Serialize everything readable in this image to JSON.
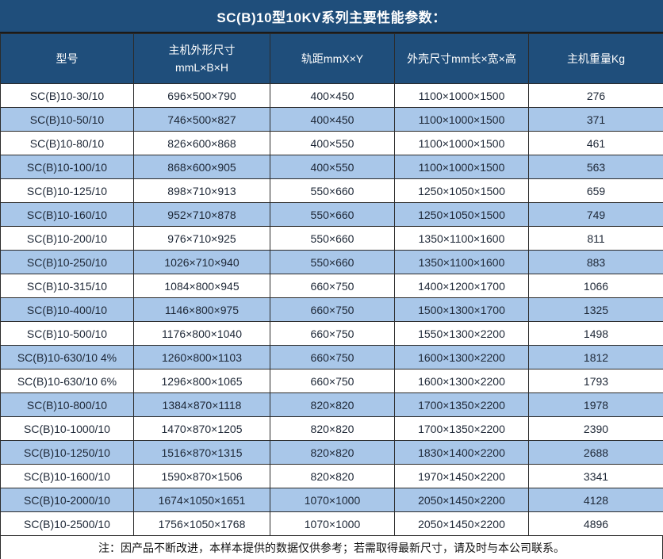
{
  "title": "SC(B)10型10KV系列主要性能参数：",
  "colors": {
    "header_bg": "#1F4E7B",
    "stripe_bg": "#A9C7E9",
    "border": "#2B2B2B",
    "header_text": "#FFFFFF",
    "cell_text": "#1D2736"
  },
  "table": {
    "columns": [
      {
        "id": "model",
        "line1": "型号",
        "line2": ""
      },
      {
        "id": "main-dimensions",
        "line1": "主机外形尺寸",
        "line2": "mmL×B×H"
      },
      {
        "id": "rail-gauge",
        "line1": "轨距mmX×Y",
        "line2": ""
      },
      {
        "id": "enclosure-dimensions",
        "line1": "外壳尺寸mm长×宽×高",
        "line2": ""
      },
      {
        "id": "weight",
        "line1": "主机重量Kg",
        "line2": ""
      }
    ],
    "rows": [
      [
        "SC(B)10-30/10",
        "696×500×790",
        "400×450",
        "1100×1000×1500",
        "276"
      ],
      [
        "SC(B)10-50/10",
        "746×500×827",
        "400×450",
        "1100×1000×1500",
        "371"
      ],
      [
        "SC(B)10-80/10",
        "826×600×868",
        "400×550",
        "1100×1000×1500",
        "461"
      ],
      [
        "SC(B)10-100/10",
        "868×600×905",
        "400×550",
        "1100×1000×1500",
        "563"
      ],
      [
        "SC(B)10-125/10",
        "898×710×913",
        "550×660",
        "1250×1050×1500",
        "659"
      ],
      [
        "SC(B)10-160/10",
        "952×710×878",
        "550×660",
        "1250×1050×1500",
        "749"
      ],
      [
        "SC(B)10-200/10",
        "976×710×925",
        "550×660",
        "1350×1100×1600",
        "811"
      ],
      [
        "SC(B)10-250/10",
        "1026×710×940",
        "550×660",
        "1350×1100×1600",
        "883"
      ],
      [
        "SC(B)10-315/10",
        "1084×800×945",
        "660×750",
        "1400×1200×1700",
        "1066"
      ],
      [
        "SC(B)10-400/10",
        "1146×800×975",
        "660×750",
        "1500×1300×1700",
        "1325"
      ],
      [
        "SC(B)10-500/10",
        "1176×800×1040",
        "660×750",
        "1550×1300×2200",
        "1498"
      ],
      [
        "SC(B)10-630/10 4%",
        "1260×800×1103",
        "660×750",
        "1600×1300×2200",
        "1812"
      ],
      [
        "SC(B)10-630/10 6%",
        "1296×800×1065",
        "660×750",
        "1600×1300×2200",
        "1793"
      ],
      [
        "SC(B)10-800/10",
        "1384×870×1118",
        "820×820",
        "1700×1350×2200",
        "1978"
      ],
      [
        "SC(B)10-1000/10",
        "1470×870×1205",
        "820×820",
        "1700×1350×2200",
        "2390"
      ],
      [
        "SC(B)10-1250/10",
        "1516×870×1315",
        "820×820",
        "1830×1400×2200",
        "2688"
      ],
      [
        "SC(B)10-1600/10",
        "1590×870×1506",
        "820×820",
        "1970×1450×2200",
        "3341"
      ],
      [
        "SC(B)10-2000/10",
        "1674×1050×1651",
        "1070×1000",
        "2050×1450×2200",
        "4128"
      ],
      [
        "SC(B)10-2500/10",
        "1756×1050×1768",
        "1070×1000",
        "2050×1450×2200",
        "4896"
      ]
    ]
  },
  "footer": {
    "note": "注：因产品不断改进，本样本提供的数据仅供参考；若需取得最新尺寸，请及时与本公司联系。"
  }
}
